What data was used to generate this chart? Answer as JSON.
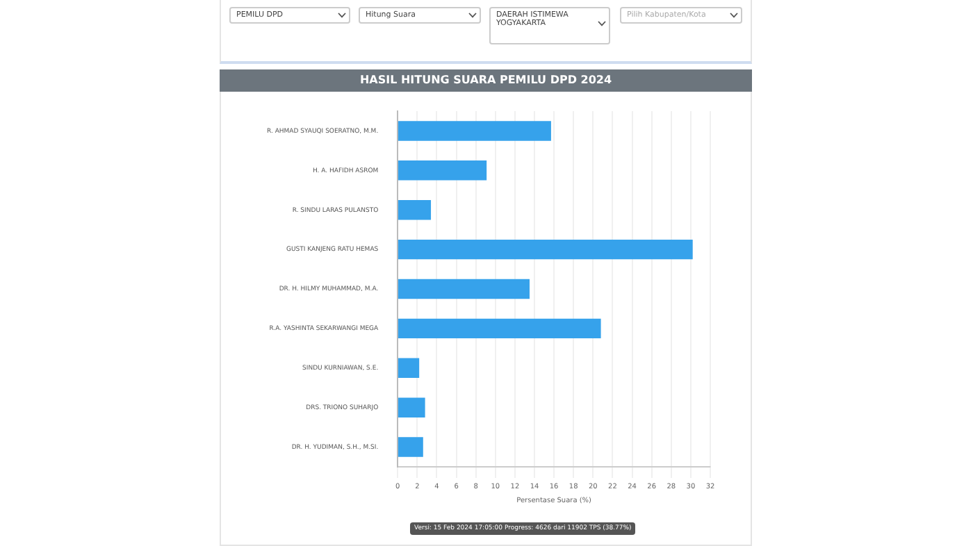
{
  "chart_data": {
    "type": "bar",
    "orientation": "horizontal",
    "title": "HASIL HITUNG SUARA PEMILU DPD 2024",
    "xlabel": "Persentase Suara (%)",
    "categories": [
      "R. AHMAD SYAUQI SOERATNO, M.M.",
      "H. A. HAFIDH ASROM",
      "R. SINDU LARAS PULANSTO",
      "GUSTI KANJENG RATU HEMAS",
      "DR. H. HILMY MUHAMMAD, M.A.",
      "R.A. YASHINTA SEKARWANGI MEGA",
      "SINDU KURNIAWAN, S.E.",
      "DRS. TRIONO SUHARJO",
      "DR. H. YUDIMAN, S.H., M.SI."
    ],
    "values": [
      15.7,
      9.1,
      3.4,
      30.2,
      13.5,
      20.8,
      2.2,
      2.8,
      2.6
    ],
    "color": "#36a2eb",
    "xlim": [
      0,
      32
    ],
    "xticks": [
      0,
      2,
      4,
      6,
      8,
      10,
      12,
      14,
      16,
      18,
      20,
      22,
      24,
      26,
      28,
      30,
      32
    ],
    "grid": "x",
    "annotations": [
      "PEMILU DPD",
      "Hitung Suara",
      "DAERAH ISTIMEWA YOGYAKARTA",
      "Pilih Kabupaten/Kota",
      "Versi: 15 Feb 2024 17:05:00 Progress: 4626 dari 11902 TPS (38.77%)"
    ]
  }
}
